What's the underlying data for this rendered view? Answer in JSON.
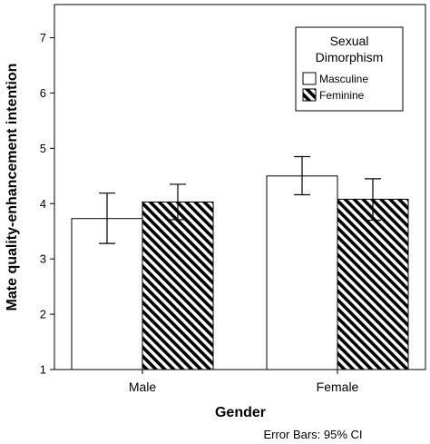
{
  "chart_data": {
    "type": "bar",
    "title": "",
    "xlabel": "Gender",
    "ylabel": "Mate quality-enhancement intention",
    "categories": [
      "Male",
      "Female"
    ],
    "ylim": [
      1,
      7.6
    ],
    "yticks": [
      1,
      2,
      3,
      4,
      5,
      6,
      7
    ],
    "grid": false,
    "legend": {
      "title_lines": [
        "Sexual",
        "Dimorphism"
      ],
      "placement": "top-right"
    },
    "series": [
      {
        "name": "Masculine",
        "fill": "white",
        "values": [
          3.73,
          4.5
        ],
        "ci_low": [
          3.28,
          4.16
        ],
        "ci_high": [
          4.19,
          4.85
        ]
      },
      {
        "name": "Feminine",
        "fill": "hatched",
        "values": [
          4.03,
          4.08
        ],
        "ci_low": [
          3.71,
          3.7
        ],
        "ci_high": [
          4.35,
          4.45
        ]
      }
    ],
    "footnote": "Error Bars: 95% CI"
  }
}
